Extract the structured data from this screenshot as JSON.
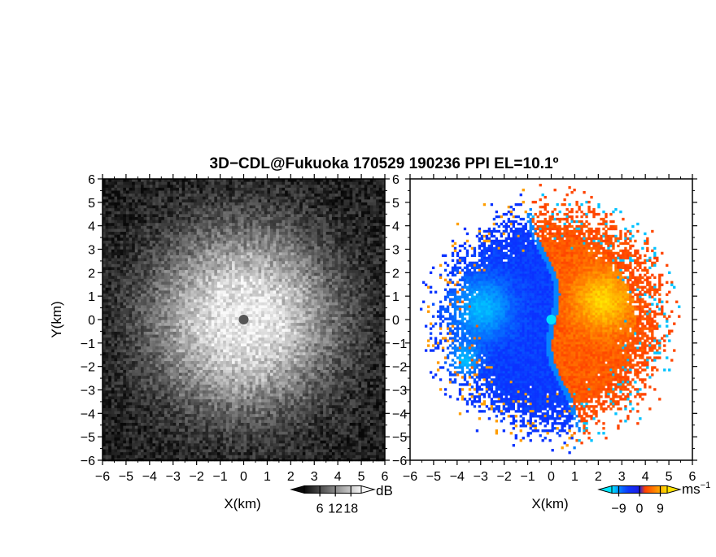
{
  "figure": {
    "title": "3D−CDL@Fukuoka 170529 190236 PPI EL=10.1º"
  },
  "chart_data": [
    {
      "type": "heatmap",
      "panel": "left",
      "quantity": "reflectivity",
      "xlabel": "X(km)",
      "ylabel": "Y(km)",
      "xlim": [
        -6,
        6
      ],
      "ylim": [
        -6,
        6
      ],
      "x_ticks": [
        "−6",
        "−5",
        "−4",
        "−3",
        "−2",
        "−1",
        "0",
        "1",
        "2",
        "3",
        "4",
        "5",
        "6"
      ],
      "y_ticks": [
        "6",
        "5",
        "4",
        "3",
        "2",
        "1",
        "0",
        "−1",
        "−2",
        "−3",
        "−4",
        "−5",
        "−6"
      ],
      "colormap": "grayscale",
      "colorbar": {
        "unit": "dB",
        "tick_labels": [
          "6",
          "12",
          "18"
        ],
        "ticks": [
          6,
          12,
          18
        ],
        "range": [
          0,
          22
        ]
      },
      "radar_center": [
        0,
        0
      ]
    },
    {
      "type": "heatmap",
      "panel": "right",
      "quantity": "doppler velocity",
      "xlabel": "X(km)",
      "xlim": [
        -6,
        6
      ],
      "ylim": [
        -6,
        6
      ],
      "x_ticks": [
        "−6",
        "−5",
        "−4",
        "−3",
        "−2",
        "−1",
        "0",
        "1",
        "2",
        "3",
        "4",
        "5",
        "6"
      ],
      "y_ticks": [
        "6",
        "5",
        "4",
        "3",
        "2",
        "1",
        "0",
        "−1",
        "−2",
        "−3",
        "−4",
        "−5",
        "−6"
      ],
      "colormap": "blue-cyan-red-orange-yellow",
      "colorbar": {
        "unit": "ms",
        "unit_superscript": "−1",
        "tick_labels": [
          "−9",
          "0",
          "9"
        ],
        "ticks": [
          -9,
          0,
          9
        ],
        "range": [
          -12,
          12
        ]
      },
      "radar_center": [
        0,
        0
      ]
    }
  ],
  "colors": {
    "blue": "#0a3cff",
    "cyan": "#00e0ff",
    "red": "#ff2200",
    "orange": "#ff7a00",
    "yellow": "#ffe000"
  }
}
